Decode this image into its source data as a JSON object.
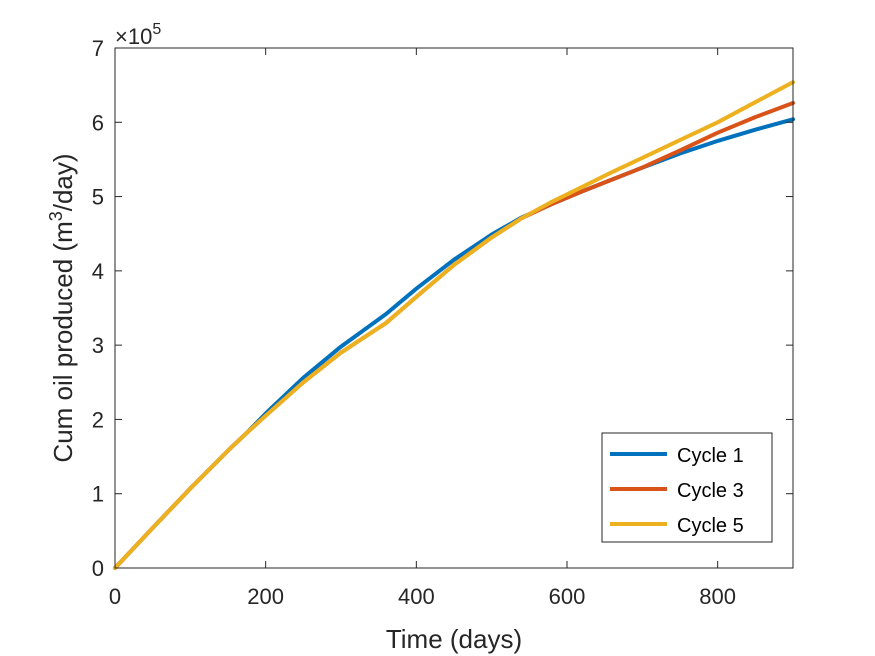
{
  "chart_data": {
    "type": "line",
    "title": "",
    "xlabel": "Time (days)",
    "ylabel_main": "Cum oil produced (m",
    "ylabel_sup": "3",
    "ylabel_tail": "/day)",
    "xlim": [
      0,
      900
    ],
    "ylim": [
      0,
      7
    ],
    "y_exponent_base": "×10",
    "y_exponent_power": "5",
    "xticks": [
      0,
      200,
      400,
      600,
      800
    ],
    "xtick_labels": [
      "0",
      "200",
      "400",
      "600",
      "800"
    ],
    "yticks": [
      0,
      1,
      2,
      3,
      4,
      5,
      6,
      7
    ],
    "ytick_labels": [
      "0",
      "1",
      "2",
      "3",
      "4",
      "5",
      "6",
      "7"
    ],
    "grid": false,
    "legend_position": "bottom-right",
    "series": [
      {
        "name": "Cycle 1",
        "color": "#0072BD",
        "x": [
          0,
          50,
          100,
          150,
          175,
          200,
          250,
          300,
          360,
          400,
          450,
          500,
          540,
          580,
          620,
          660,
          700,
          750,
          800,
          850,
          900
        ],
        "y": [
          0,
          0.54,
          1.07,
          1.58,
          1.82,
          2.08,
          2.56,
          2.98,
          3.42,
          3.76,
          4.15,
          4.49,
          4.72,
          4.9,
          5.07,
          5.23,
          5.39,
          5.58,
          5.75,
          5.9,
          6.04
        ]
      },
      {
        "name": "Cycle 3",
        "color": "#D95319",
        "x": [
          0,
          50,
          100,
          150,
          175,
          200,
          250,
          300,
          360,
          400,
          450,
          500,
          540,
          580,
          620,
          660,
          700,
          750,
          800,
          850,
          900
        ],
        "y": [
          0,
          0.54,
          1.07,
          1.58,
          1.82,
          2.05,
          2.5,
          2.9,
          3.3,
          3.65,
          4.08,
          4.45,
          4.71,
          4.9,
          5.07,
          5.23,
          5.39,
          5.62,
          5.86,
          6.07,
          6.26
        ]
      },
      {
        "name": "Cycle 5",
        "color": "#EDB120",
        "x": [
          0,
          50,
          100,
          150,
          175,
          200,
          250,
          300,
          360,
          400,
          450,
          500,
          540,
          580,
          620,
          660,
          700,
          750,
          800,
          850,
          900
        ],
        "y": [
          0,
          0.54,
          1.07,
          1.58,
          1.82,
          2.05,
          2.5,
          2.9,
          3.3,
          3.65,
          4.08,
          4.45,
          4.71,
          4.93,
          5.13,
          5.33,
          5.52,
          5.76,
          6.0,
          6.27,
          6.54
        ]
      }
    ]
  }
}
